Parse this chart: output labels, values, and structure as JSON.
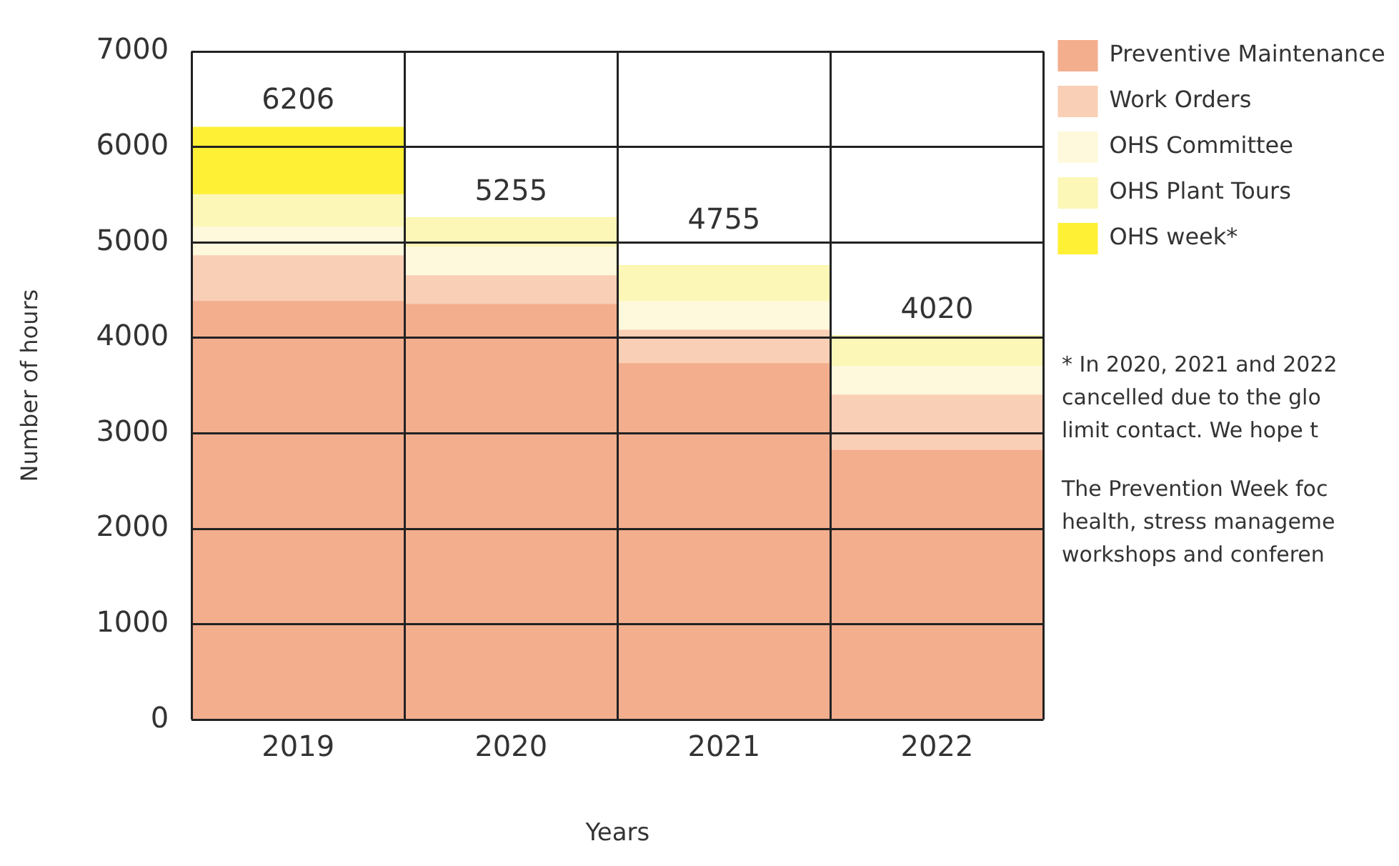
{
  "chart_data": {
    "type": "bar",
    "stacked": true,
    "xlabel": "Years",
    "ylabel": "Number of hours",
    "categories": [
      "2019",
      "2020",
      "2021",
      "2022"
    ],
    "series": [
      {
        "name": "Preventive Maintenance",
        "color": "#f3ae8e",
        "values": [
          4380,
          4350,
          3730,
          2820
        ]
      },
      {
        "name": "Work Orders",
        "color": "#f9cfb5",
        "values": [
          480,
          300,
          350,
          580
        ]
      },
      {
        "name": "OHS Committee",
        "color": "#fef9dc",
        "values": [
          300,
          300,
          300,
          300
        ]
      },
      {
        "name": "OHS Plant Tours",
        "color": "#fcf7b6",
        "values": [
          340,
          305,
          375,
          320
        ]
      },
      {
        "name": "OHS week*",
        "color": "#fef035",
        "values": [
          706,
          0,
          0,
          0
        ]
      }
    ],
    "totals": [
      "6206",
      "5255",
      "4755",
      "4020"
    ],
    "ylim": [
      0,
      7000
    ],
    "yticks": [
      0,
      1000,
      2000,
      3000,
      4000,
      5000,
      6000,
      7000
    ],
    "grid": true,
    "legend": "top right",
    "annotations": [
      "* In 2020, 2021 and 2022\ncancelled due to the glo\nlimit contact. We hope t",
      "The Prevention Week foc\nhealth, stress manageme\nworkshops and conferen"
    ]
  }
}
